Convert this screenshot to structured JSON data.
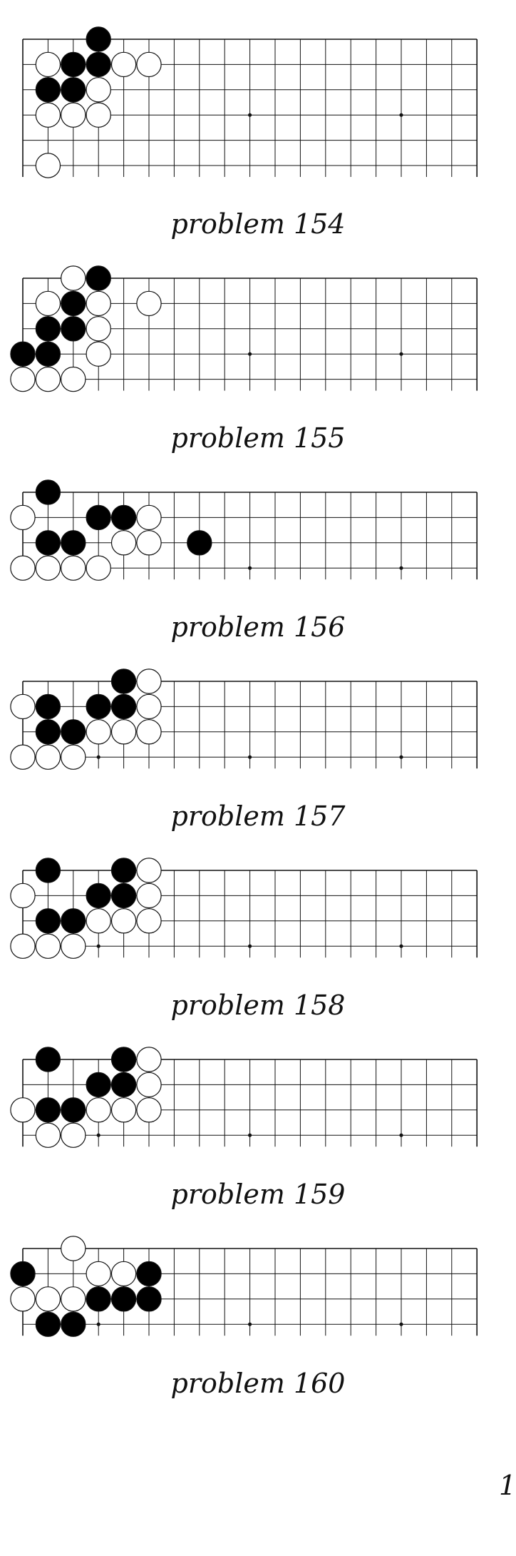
{
  "stone_colors": {
    "black": "#000000",
    "white": "#ffffff",
    "line": "#111111"
  },
  "problems": [
    {
      "label": "problem 154",
      "stones": [
        {
          "color": "black",
          "col": 3,
          "row": 0
        },
        {
          "color": "white",
          "col": 1,
          "row": 1
        },
        {
          "color": "black",
          "col": 2,
          "row": 1
        },
        {
          "color": "black",
          "col": 3,
          "row": 1
        },
        {
          "color": "white",
          "col": 4,
          "row": 1
        },
        {
          "color": "white",
          "col": 5,
          "row": 1
        },
        {
          "color": "black",
          "col": 1,
          "row": 2
        },
        {
          "color": "black",
          "col": 2,
          "row": 2
        },
        {
          "color": "white",
          "col": 3,
          "row": 2
        },
        {
          "color": "white",
          "col": 1,
          "row": 3
        },
        {
          "color": "white",
          "col": 2,
          "row": 3
        },
        {
          "color": "white",
          "col": 3,
          "row": 3
        },
        {
          "color": "white",
          "col": 1,
          "row": 5
        }
      ]
    },
    {
      "label": "problem 155",
      "stones": [
        {
          "color": "white",
          "col": 2,
          "row": 0
        },
        {
          "color": "black",
          "col": 3,
          "row": 0
        },
        {
          "color": "white",
          "col": 1,
          "row": 1
        },
        {
          "color": "black",
          "col": 2,
          "row": 1
        },
        {
          "color": "white",
          "col": 3,
          "row": 1
        },
        {
          "color": "white",
          "col": 5,
          "row": 1
        },
        {
          "color": "black",
          "col": 1,
          "row": 2
        },
        {
          "color": "black",
          "col": 2,
          "row": 2
        },
        {
          "color": "white",
          "col": 3,
          "row": 2
        },
        {
          "color": "black",
          "col": 0,
          "row": 3
        },
        {
          "color": "black",
          "col": 1,
          "row": 3
        },
        {
          "color": "white",
          "col": 3,
          "row": 3
        },
        {
          "color": "white",
          "col": 0,
          "row": 4
        },
        {
          "color": "white",
          "col": 1,
          "row": 4
        },
        {
          "color": "white",
          "col": 2,
          "row": 4
        }
      ]
    },
    {
      "label": "problem 156",
      "stones": [
        {
          "color": "black",
          "col": 1,
          "row": 0
        },
        {
          "color": "white",
          "col": 0,
          "row": 1
        },
        {
          "color": "black",
          "col": 3,
          "row": 1
        },
        {
          "color": "black",
          "col": 4,
          "row": 1
        },
        {
          "color": "white",
          "col": 5,
          "row": 1
        },
        {
          "color": "black",
          "col": 1,
          "row": 2
        },
        {
          "color": "black",
          "col": 2,
          "row": 2
        },
        {
          "color": "white",
          "col": 4,
          "row": 2
        },
        {
          "color": "white",
          "col": 5,
          "row": 2
        },
        {
          "color": "black",
          "col": 7,
          "row": 2
        },
        {
          "color": "white",
          "col": 0,
          "row": 3
        },
        {
          "color": "white",
          "col": 1,
          "row": 3
        },
        {
          "color": "white",
          "col": 2,
          "row": 3
        },
        {
          "color": "white",
          "col": 3,
          "row": 3
        }
      ]
    },
    {
      "label": "problem 157",
      "stones": [
        {
          "color": "black",
          "col": 4,
          "row": 0
        },
        {
          "color": "white",
          "col": 5,
          "row": 0
        },
        {
          "color": "white",
          "col": 0,
          "row": 1
        },
        {
          "color": "black",
          "col": 1,
          "row": 1
        },
        {
          "color": "black",
          "col": 3,
          "row": 1
        },
        {
          "color": "black",
          "col": 4,
          "row": 1
        },
        {
          "color": "white",
          "col": 5,
          "row": 1
        },
        {
          "color": "black",
          "col": 1,
          "row": 2
        },
        {
          "color": "black",
          "col": 2,
          "row": 2
        },
        {
          "color": "white",
          "col": 3,
          "row": 2
        },
        {
          "color": "white",
          "col": 4,
          "row": 2
        },
        {
          "color": "white",
          "col": 5,
          "row": 2
        },
        {
          "color": "white",
          "col": 0,
          "row": 3
        },
        {
          "color": "white",
          "col": 1,
          "row": 3
        },
        {
          "color": "white",
          "col": 2,
          "row": 3
        }
      ]
    },
    {
      "label": "problem 158",
      "stones": [
        {
          "color": "black",
          "col": 1,
          "row": 0
        },
        {
          "color": "black",
          "col": 4,
          "row": 0
        },
        {
          "color": "white",
          "col": 5,
          "row": 0
        },
        {
          "color": "white",
          "col": 0,
          "row": 1
        },
        {
          "color": "black",
          "col": 3,
          "row": 1
        },
        {
          "color": "black",
          "col": 4,
          "row": 1
        },
        {
          "color": "white",
          "col": 5,
          "row": 1
        },
        {
          "color": "black",
          "col": 1,
          "row": 2
        },
        {
          "color": "black",
          "col": 2,
          "row": 2
        },
        {
          "color": "white",
          "col": 3,
          "row": 2
        },
        {
          "color": "white",
          "col": 4,
          "row": 2
        },
        {
          "color": "white",
          "col": 5,
          "row": 2
        },
        {
          "color": "white",
          "col": 0,
          "row": 3
        },
        {
          "color": "white",
          "col": 1,
          "row": 3
        },
        {
          "color": "white",
          "col": 2,
          "row": 3
        }
      ]
    },
    {
      "label": "problem 159",
      "stones": [
        {
          "color": "black",
          "col": 1,
          "row": 0
        },
        {
          "color": "black",
          "col": 4,
          "row": 0
        },
        {
          "color": "white",
          "col": 5,
          "row": 0
        },
        {
          "color": "black",
          "col": 3,
          "row": 1
        },
        {
          "color": "black",
          "col": 4,
          "row": 1
        },
        {
          "color": "white",
          "col": 5,
          "row": 1
        },
        {
          "color": "white",
          "col": 0,
          "row": 2
        },
        {
          "color": "black",
          "col": 1,
          "row": 2
        },
        {
          "color": "black",
          "col": 2,
          "row": 2
        },
        {
          "color": "white",
          "col": 3,
          "row": 2
        },
        {
          "color": "white",
          "col": 4,
          "row": 2
        },
        {
          "color": "white",
          "col": 5,
          "row": 2
        },
        {
          "color": "white",
          "col": 1,
          "row": 3
        },
        {
          "color": "white",
          "col": 2,
          "row": 3
        }
      ]
    },
    {
      "label": "problem 160",
      "stones": [
        {
          "color": "white",
          "col": 2,
          "row": 0
        },
        {
          "color": "black",
          "col": 0,
          "row": 1
        },
        {
          "color": "white",
          "col": 3,
          "row": 1
        },
        {
          "color": "white",
          "col": 4,
          "row": 1
        },
        {
          "color": "black",
          "col": 5,
          "row": 1
        },
        {
          "color": "white",
          "col": 0,
          "row": 2
        },
        {
          "color": "white",
          "col": 1,
          "row": 2
        },
        {
          "color": "white",
          "col": 2,
          "row": 2
        },
        {
          "color": "black",
          "col": 3,
          "row": 2
        },
        {
          "color": "black",
          "col": 4,
          "row": 2
        },
        {
          "color": "black",
          "col": 5,
          "row": 2
        },
        {
          "color": "black",
          "col": 1,
          "row": 3
        },
        {
          "color": "black",
          "col": 2,
          "row": 3
        }
      ]
    }
  ],
  "page_number": "1"
}
